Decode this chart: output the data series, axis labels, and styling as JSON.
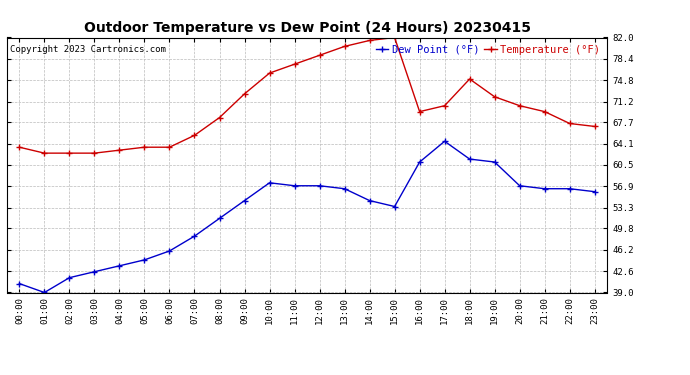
{
  "title": "Outdoor Temperature vs Dew Point (24 Hours) 20230415",
  "copyright": "Copyright 2023 Cartronics.com",
  "legend_dew": "Dew Point (°F)",
  "legend_temp": "Temperature (°F)",
  "hours": [
    "00:00",
    "01:00",
    "02:00",
    "03:00",
    "04:00",
    "05:00",
    "06:00",
    "07:00",
    "08:00",
    "09:00",
    "10:00",
    "11:00",
    "12:00",
    "13:00",
    "14:00",
    "15:00",
    "16:00",
    "17:00",
    "18:00",
    "19:00",
    "20:00",
    "21:00",
    "22:00",
    "23:00"
  ],
  "temperature": [
    63.5,
    62.5,
    62.5,
    62.5,
    63.0,
    63.5,
    63.5,
    65.5,
    68.5,
    72.5,
    76.0,
    77.5,
    79.0,
    80.5,
    81.5,
    82.0,
    69.5,
    70.5,
    75.0,
    72.0,
    70.5,
    69.5,
    67.5,
    67.0
  ],
  "dew_point": [
    40.5,
    39.0,
    41.5,
    42.5,
    43.5,
    44.5,
    46.0,
    48.5,
    51.5,
    54.5,
    57.5,
    57.0,
    57.0,
    56.5,
    54.5,
    53.5,
    61.0,
    64.5,
    61.5,
    61.0,
    57.0,
    56.5,
    56.5,
    56.0
  ],
  "temp_color": "#cc0000",
  "dew_color": "#0000cc",
  "bg_color": "#ffffff",
  "grid_color": "#bbbbbb",
  "ylim_min": 39.0,
  "ylim_max": 82.0,
  "yticks": [
    39.0,
    42.6,
    46.2,
    49.8,
    53.3,
    56.9,
    60.5,
    64.1,
    67.7,
    71.2,
    74.8,
    78.4,
    82.0
  ],
  "title_fontsize": 10,
  "copyright_fontsize": 6.5,
  "legend_fontsize": 7.5,
  "tick_fontsize": 6.5
}
